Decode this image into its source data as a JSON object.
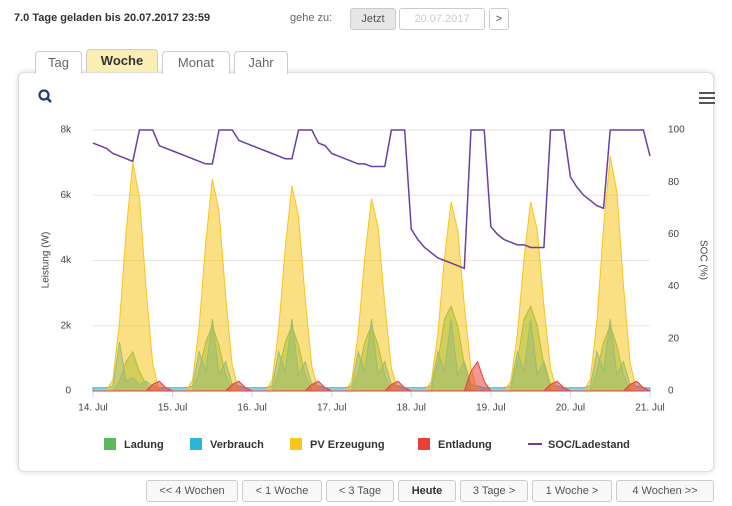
{
  "header": {
    "status": "7.0 Tage geladen bis 20.07.2017 23:59",
    "goto_label": "gehe zu:",
    "now_button": "Jetzt",
    "date_input": "20.07.2017",
    "next_button": ">"
  },
  "tabs": {
    "items": [
      "Tag",
      "Woche",
      "Monat",
      "Jahr"
    ],
    "active": 1
  },
  "nav": {
    "buttons": [
      "<< 4 Wochen",
      "< 1 Woche",
      "< 3 Tage",
      "Heute",
      "3 Tage >",
      "1 Woche >",
      "4 Wochen >>"
    ]
  },
  "chart_data": {
    "type": "area",
    "y_label": "Leistung (W)",
    "y2_label": "SOC (%)",
    "categories": [
      "14. Jul",
      null,
      null,
      null,
      null,
      null,
      null,
      null,
      null,
      null,
      null,
      null,
      "15. Jul",
      null,
      null,
      null,
      null,
      null,
      null,
      null,
      null,
      null,
      null,
      null,
      "16. Jul",
      null,
      null,
      null,
      null,
      null,
      null,
      null,
      null,
      null,
      null,
      null,
      "17. Jul",
      null,
      null,
      null,
      null,
      null,
      null,
      null,
      null,
      null,
      null,
      null,
      "18. Jul",
      null,
      null,
      null,
      null,
      null,
      null,
      null,
      null,
      null,
      null,
      null,
      "19. Jul",
      null,
      null,
      null,
      null,
      null,
      null,
      null,
      null,
      null,
      null,
      null,
      "20. Jul",
      null,
      null,
      null,
      null,
      null,
      null,
      null,
      null,
      null,
      null,
      null,
      "21. Jul"
    ],
    "ylim": [
      0,
      8000
    ],
    "yticks": [
      0,
      {
        "value": 2000,
        "label": "2k"
      },
      {
        "value": 4000,
        "label": "4k"
      },
      {
        "value": 6000,
        "label": "6k"
      },
      {
        "value": 8000,
        "label": "8k"
      }
    ],
    "y2lim": [
      0,
      100
    ],
    "y2ticks": [
      0,
      20,
      40,
      60,
      80,
      100
    ],
    "grid": true,
    "series": [
      {
        "name": "Ladung",
        "type": "area",
        "color": "#5cb85c",
        "values": [
          0,
          0,
          0,
          0,
          300,
          900,
          1200,
          600,
          200,
          0,
          0,
          0,
          0,
          0,
          0,
          0,
          600,
          1500,
          2000,
          1400,
          500,
          0,
          0,
          0,
          0,
          0,
          0,
          0,
          600,
          1500,
          2000,
          1400,
          500,
          0,
          0,
          0,
          0,
          0,
          0,
          0,
          600,
          1500,
          2000,
          1400,
          500,
          0,
          0,
          0,
          0,
          0,
          0,
          0,
          900,
          2200,
          2600,
          2000,
          800,
          0,
          0,
          0,
          0,
          0,
          0,
          0,
          900,
          2200,
          2600,
          2000,
          800,
          0,
          0,
          0,
          0,
          0,
          0,
          0,
          600,
          1500,
          2000,
          1400,
          500,
          0,
          0,
          0,
          0
        ]
      },
      {
        "name": "Verbrauch",
        "type": "area",
        "color": "#2bb5d6",
        "values": [
          100,
          100,
          100,
          150,
          1500,
          300,
          400,
          200,
          300,
          150,
          100,
          100,
          100,
          100,
          100,
          150,
          1200,
          600,
          2200,
          500,
          900,
          200,
          150,
          100,
          100,
          100,
          100,
          150,
          1200,
          600,
          2200,
          500,
          900,
          200,
          150,
          100,
          100,
          100,
          100,
          150,
          1200,
          600,
          2200,
          500,
          900,
          200,
          150,
          100,
          100,
          100,
          100,
          150,
          1200,
          600,
          2200,
          500,
          900,
          200,
          150,
          100,
          100,
          100,
          100,
          150,
          1200,
          600,
          2200,
          500,
          900,
          200,
          150,
          100,
          100,
          100,
          100,
          150,
          1200,
          600,
          2200,
          500,
          900,
          200,
          150,
          100,
          100
        ]
      },
      {
        "name": "PV Erzeugung",
        "type": "area",
        "color": "#f7c51e",
        "values": [
          0,
          0,
          0,
          350,
          2100,
          4900,
          7000,
          5950,
          3150,
          840,
          0,
          0,
          0,
          0,
          0,
          325,
          1950,
          4550,
          6500,
          5525,
          2925,
          780,
          0,
          0,
          0,
          0,
          0,
          315,
          1890,
          4410,
          6300,
          5355,
          2835,
          756,
          0,
          0,
          0,
          0,
          0,
          295,
          1770,
          4130,
          5900,
          5015,
          2655,
          708,
          0,
          0,
          0,
          0,
          0,
          290,
          1740,
          4060,
          5800,
          4930,
          2610,
          696,
          0,
          0,
          0,
          0,
          0,
          290,
          1740,
          4060,
          5800,
          4930,
          2610,
          696,
          0,
          0,
          0,
          0,
          0,
          360,
          2160,
          5040,
          7200,
          6120,
          3240,
          864,
          0,
          0,
          0
        ]
      },
      {
        "name": "Entladung",
        "type": "area",
        "color": "#e8413a",
        "values": [
          0,
          0,
          0,
          0,
          0,
          0,
          0,
          0,
          0,
          200,
          300,
          100,
          0,
          0,
          0,
          0,
          0,
          0,
          0,
          0,
          0,
          200,
          300,
          100,
          0,
          0,
          0,
          0,
          0,
          0,
          0,
          0,
          0,
          200,
          300,
          100,
          0,
          0,
          0,
          0,
          0,
          0,
          0,
          0,
          0,
          200,
          300,
          100,
          0,
          0,
          0,
          0,
          0,
          0,
          0,
          0,
          0,
          600,
          900,
          300,
          0,
          0,
          0,
          0,
          0,
          0,
          0,
          0,
          0,
          200,
          300,
          100,
          0,
          0,
          0,
          0,
          0,
          0,
          0,
          0,
          0,
          200,
          300,
          100,
          0
        ]
      },
      {
        "name": "SOC/Ladestand",
        "type": "line",
        "axis": "y2",
        "color": "#6b3fa0",
        "values": [
          95,
          94,
          93,
          91,
          90,
          89,
          88,
          100,
          100,
          100,
          94,
          93,
          92,
          91,
          90,
          89,
          88,
          87,
          87,
          100,
          100,
          100,
          96,
          95,
          94,
          93,
          92,
          91,
          90,
          89,
          89,
          100,
          100,
          100,
          95,
          94,
          91,
          90,
          89,
          88,
          87,
          87,
          86,
          86,
          86,
          100,
          100,
          100,
          62,
          58,
          55,
          53,
          51,
          50,
          49,
          48,
          47,
          100,
          100,
          100,
          63,
          60,
          58,
          57,
          56,
          56,
          55,
          55,
          55,
          100,
          100,
          100,
          82,
          78,
          75,
          73,
          71,
          70,
          100,
          100,
          100,
          100,
          100,
          100,
          90
        ]
      }
    ]
  }
}
